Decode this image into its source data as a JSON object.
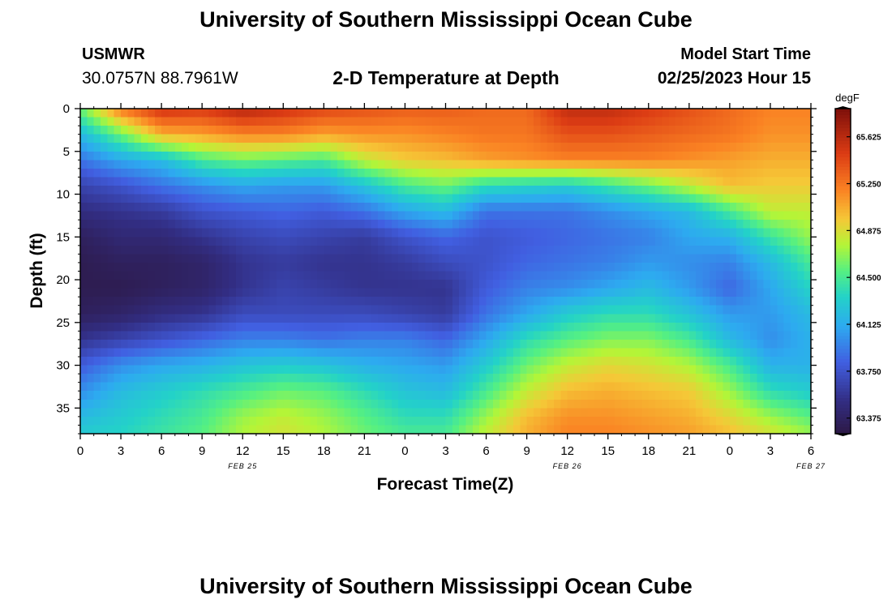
{
  "header": {
    "title": "University of Southern Mississippi Ocean Cube",
    "station_name": "USMWR",
    "station_coords": "30.0757N  88.7961W",
    "plot_title": "2-D Temperature at Depth",
    "model_label": "Model Start Time",
    "model_time": "02/25/2023 Hour 15"
  },
  "footer": {
    "title": "University of Southern Mississippi Ocean Cube"
  },
  "chart_data": {
    "type": "heatmap",
    "title": "2-D Temperature at Depth",
    "xlabel": "Forecast Time(Z)",
    "ylabel": "Depth (ft)",
    "x_tick_labels": [
      "0",
      "3",
      "6",
      "9",
      "12",
      "15",
      "18",
      "21",
      "0",
      "3",
      "6",
      "9",
      "12",
      "15",
      "18",
      "21",
      "0",
      "3",
      "6"
    ],
    "date_labels": [
      {
        "label": "FEB 25",
        "hour_index": 12
      },
      {
        "label": "FEB 26",
        "hour_index": 36
      },
      {
        "label": "FEB 27",
        "hour_index": 54
      }
    ],
    "x_range_hours": [
      0,
      54
    ],
    "y_ticks": [
      0,
      5,
      10,
      15,
      20,
      25,
      30,
      35
    ],
    "y_range_ft": [
      0,
      38
    ],
    "y_inverted": true,
    "colorbar": {
      "unit": "degF",
      "min": 63.25,
      "max": 65.85,
      "tick_values": [
        63.375,
        63.75,
        64.125,
        64.5,
        64.875,
        65.25,
        65.625
      ],
      "tick_labels": [
        "63.375",
        "63.750",
        "64.125",
        "64.500",
        "64.875",
        "65.250",
        "65.625"
      ]
    },
    "profile_keys": {
      "hours": [
        0,
        3,
        6,
        9,
        12,
        15,
        18,
        21,
        24,
        27,
        30,
        33,
        36,
        39,
        42,
        45,
        48,
        51,
        54
      ],
      "depths": [
        0,
        3,
        6,
        9,
        12,
        15,
        18,
        21,
        24,
        27,
        30,
        33,
        36,
        38
      ],
      "note": "temperature in degF, rows = depth, columns = hour",
      "values": [
        [
          64.6,
          65.25,
          65.55,
          65.5,
          65.65,
          65.55,
          65.45,
          65.4,
          65.35,
          65.35,
          65.3,
          65.3,
          65.6,
          65.6,
          65.5,
          65.4,
          65.3,
          65.2,
          65.2
        ],
        [
          64.2,
          64.6,
          65.05,
          65.1,
          65.2,
          65.2,
          65.1,
          65.15,
          65.15,
          65.2,
          65.25,
          65.25,
          65.4,
          65.4,
          65.35,
          65.3,
          65.25,
          65.15,
          65.15
        ],
        [
          63.9,
          64.1,
          64.2,
          64.5,
          64.6,
          64.55,
          64.5,
          64.8,
          64.95,
          65.0,
          65.1,
          65.15,
          65.2,
          65.2,
          65.2,
          65.15,
          65.1,
          65.05,
          65.05
        ],
        [
          63.65,
          63.75,
          63.9,
          64.0,
          64.1,
          64.05,
          64.05,
          64.25,
          64.5,
          64.6,
          64.4,
          64.35,
          64.3,
          64.45,
          64.6,
          64.8,
          65.0,
          64.95,
          64.95
        ],
        [
          63.5,
          63.55,
          63.6,
          63.75,
          63.8,
          63.85,
          63.8,
          63.9,
          64.1,
          64.2,
          63.9,
          63.9,
          63.9,
          64.0,
          64.1,
          64.2,
          64.5,
          64.8,
          64.8
        ],
        [
          63.35,
          63.45,
          63.45,
          63.55,
          63.65,
          63.7,
          63.65,
          63.6,
          63.75,
          63.85,
          63.75,
          63.8,
          63.85,
          63.9,
          63.95,
          64.1,
          64.15,
          64.45,
          64.7
        ],
        [
          63.3,
          63.35,
          63.35,
          63.4,
          63.55,
          63.6,
          63.55,
          63.55,
          63.6,
          63.7,
          63.75,
          63.85,
          63.9,
          63.95,
          64.05,
          64.0,
          63.95,
          64.2,
          64.5
        ],
        [
          63.3,
          63.3,
          63.35,
          63.4,
          63.55,
          63.65,
          63.6,
          63.55,
          63.55,
          63.55,
          63.8,
          63.95,
          64.0,
          64.1,
          64.2,
          64.05,
          63.85,
          64.1,
          64.35
        ],
        [
          63.35,
          63.4,
          63.5,
          63.55,
          63.7,
          63.7,
          63.7,
          63.7,
          63.65,
          63.6,
          63.9,
          64.1,
          64.3,
          64.4,
          64.4,
          64.25,
          64.05,
          64.05,
          64.2
        ],
        [
          63.55,
          63.65,
          63.75,
          63.85,
          63.95,
          63.95,
          63.9,
          63.95,
          63.95,
          63.85,
          64.1,
          64.4,
          64.55,
          64.65,
          64.65,
          64.5,
          64.2,
          64.0,
          64.15
        ],
        [
          63.8,
          64.0,
          64.1,
          64.15,
          64.25,
          64.3,
          64.25,
          64.15,
          64.1,
          64.05,
          64.3,
          64.6,
          64.8,
          64.9,
          64.85,
          64.75,
          64.5,
          64.15,
          64.15
        ],
        [
          64.0,
          64.2,
          64.3,
          64.4,
          64.5,
          64.6,
          64.55,
          64.4,
          64.25,
          64.2,
          64.5,
          64.8,
          65.0,
          65.05,
          65.0,
          64.95,
          64.7,
          64.4,
          64.3
        ],
        [
          64.2,
          64.3,
          64.4,
          64.5,
          64.7,
          64.8,
          64.7,
          64.55,
          64.4,
          64.4,
          64.7,
          65.0,
          65.15,
          65.15,
          65.1,
          65.05,
          64.9,
          64.7,
          64.55
        ],
        [
          64.3,
          64.35,
          64.45,
          64.55,
          64.75,
          64.85,
          64.75,
          64.6,
          64.5,
          64.5,
          64.8,
          65.05,
          65.2,
          65.2,
          65.15,
          65.1,
          65.0,
          64.85,
          64.7
        ]
      ]
    }
  }
}
